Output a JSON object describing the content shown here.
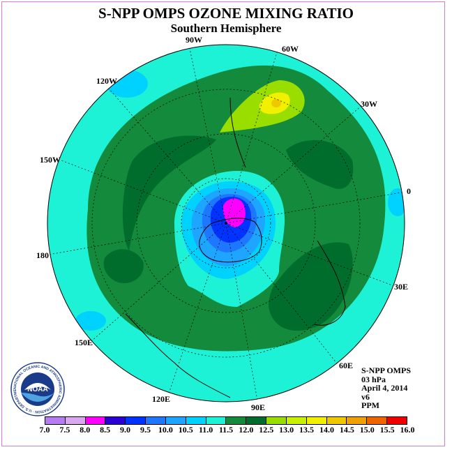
{
  "title": "S-NPP OMPS OZONE MIXING RATIO",
  "subtitle": "Southern Hemisphere",
  "longitude_labels": [
    "90W",
    "60W",
    "30W",
    "120W",
    "150W",
    "0",
    "180",
    "30E",
    "150E",
    "60E",
    "120E",
    "90E"
  ],
  "info": {
    "product": "S-NPP OMPS",
    "level": "03 hPa",
    "date": "April 4, 2014",
    "version": "v6",
    "units": "PPM"
  },
  "logo": {
    "text": "NOAA",
    "ring_text": "NATIONAL OCEANIC AND ATMOSPHERIC ADMINISTRATION · U.S. DEPARTMENT OF COMMERCE"
  },
  "colorbar": {
    "labels": [
      "7.0",
      "7.5",
      "8.0",
      "8.5",
      "9.0",
      "9.5",
      "10.0",
      "10.5",
      "11.0",
      "11.5",
      "12.0",
      "12.5",
      "13.0",
      "13.5",
      "14.0",
      "14.5",
      "15.0",
      "15.5",
      "16.0"
    ],
    "colors": [
      "#b77bf2",
      "#d9a8f0",
      "#ff00ff",
      "#2b00d6",
      "#0033ff",
      "#1e78ff",
      "#1ea5ff",
      "#00d2ff",
      "#1ef2d6",
      "#138a3c",
      "#006d2c",
      "#9ade00",
      "#c8f000",
      "#f0f000",
      "#f0c800",
      "#f0a000",
      "#f06400",
      "#f00000",
      "#8b5a3c"
    ]
  },
  "colors": {
    "frame": "#d67bd6",
    "background": "#ffffff"
  }
}
